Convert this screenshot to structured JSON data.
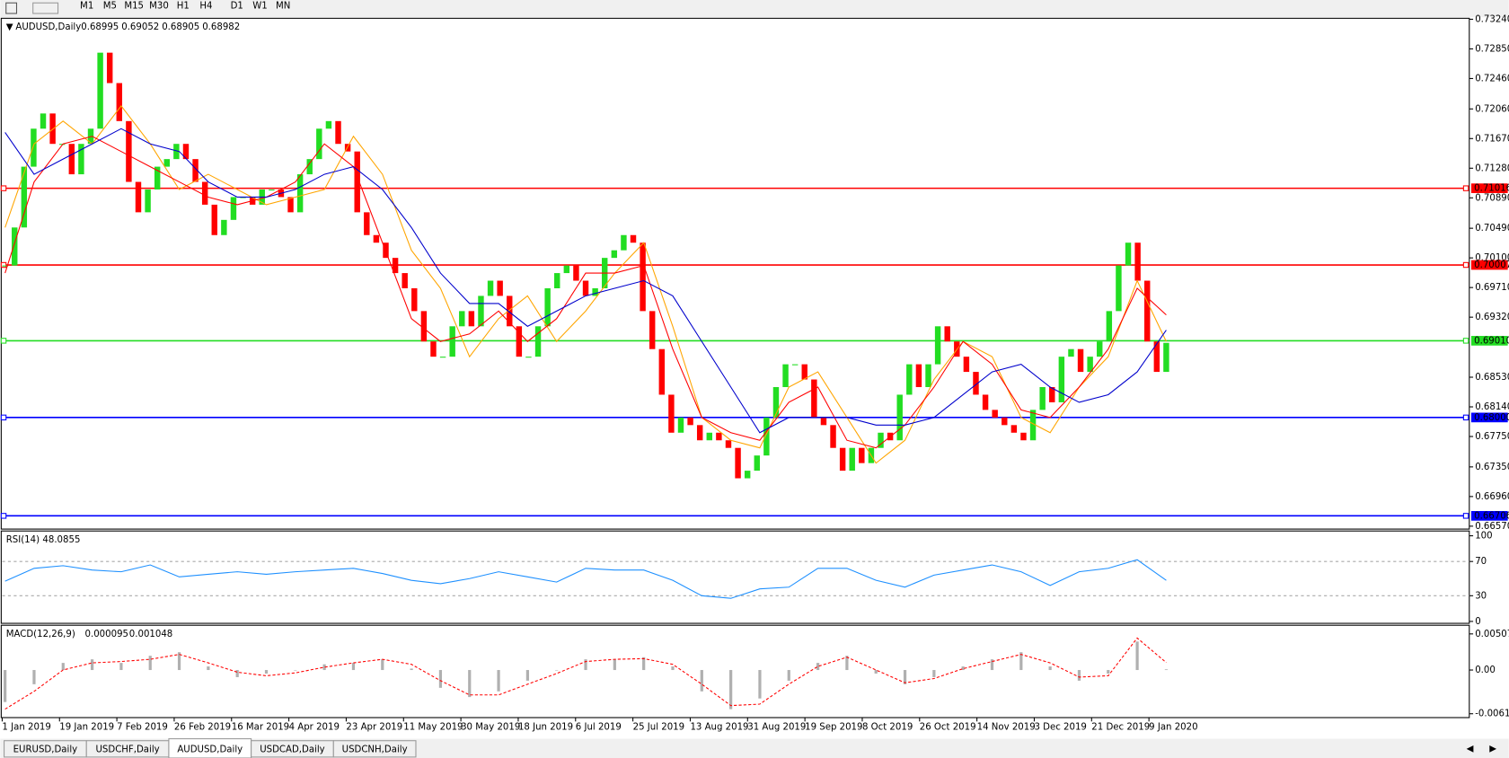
{
  "toolbar": {
    "timeframes": [
      "M1",
      "M5",
      "M15",
      "M30",
      "H1",
      "H4",
      "D1",
      "W1",
      "MN"
    ]
  },
  "tabs": {
    "items": [
      "EURUSD,Daily",
      "USDCHF,Daily",
      "AUDUSD,Daily",
      "USDCAD,Daily",
      "USDCNH,Daily"
    ],
    "active": 2
  },
  "chart_data": {
    "type": "candlestick",
    "title": "AUDUSD,Daily",
    "quote": [
      0.68995,
      0.69052,
      0.68905,
      0.68982
    ],
    "up_color": "#22dd22",
    "down_color": "#ff0000",
    "close": [
      0.7,
      0.705,
      0.713,
      0.718,
      0.72,
      0.716,
      0.716,
      0.712,
      0.716,
      0.718,
      0.728,
      0.724,
      0.719,
      0.711,
      0.707,
      0.71,
      0.713,
      0.714,
      0.716,
      0.714,
      0.711,
      0.708,
      0.704,
      0.706,
      0.709,
      0.709,
      0.708,
      0.71,
      0.71,
      0.709,
      0.707,
      0.712,
      0.714,
      0.718,
      0.719,
      0.716,
      0.715,
      0.707,
      0.704,
      0.703,
      0.701,
      0.699,
      0.697,
      0.694,
      0.69,
      0.688,
      0.688,
      0.692,
      0.694,
      0.692,
      0.696,
      0.698,
      0.696,
      0.692,
      0.688,
      0.688,
      0.692,
      0.697,
      0.699,
      0.7,
      0.698,
      0.696,
      0.697,
      0.701,
      0.702,
      0.704,
      0.703,
      0.694,
      0.689,
      0.683,
      0.678,
      0.68,
      0.679,
      0.677,
      0.678,
      0.677,
      0.676,
      0.672,
      0.673,
      0.675,
      0.68,
      0.684,
      0.687,
      0.687,
      0.685,
      0.68,
      0.679,
      0.676,
      0.673,
      0.676,
      0.674,
      0.676,
      0.678,
      0.677,
      0.683,
      0.687,
      0.684,
      0.687,
      0.692,
      0.69,
      0.688,
      0.686,
      0.683,
      0.681,
      0.68,
      0.679,
      0.678,
      0.677,
      0.681,
      0.684,
      0.682,
      0.688,
      0.689,
      0.686,
      0.688,
      0.69,
      0.694,
      0.7,
      0.703,
      0.698,
      0.69,
      0.686,
      0.68982
    ],
    "moving_averages": [
      {
        "color": "#ffa500",
        "values": [
          0.705,
          0.716,
          0.719,
          0.716,
          0.721,
          0.716,
          0.71,
          0.712,
          0.71,
          0.708,
          0.709,
          0.71,
          0.717,
          0.712,
          0.702,
          0.697,
          0.688,
          0.693,
          0.696,
          0.69,
          0.694,
          0.699,
          0.703,
          0.692,
          0.68,
          0.677,
          0.676,
          0.684,
          0.686,
          0.68,
          0.674,
          0.677,
          0.685,
          0.69,
          0.688,
          0.68,
          0.678,
          0.684,
          0.688,
          0.698,
          0.69
        ]
      },
      {
        "color": "#ff0000",
        "values": [
          0.699,
          0.711,
          0.716,
          0.717,
          0.715,
          0.713,
          0.711,
          0.709,
          0.708,
          0.709,
          0.711,
          0.716,
          0.713,
          0.703,
          0.693,
          0.69,
          0.691,
          0.694,
          0.69,
          0.693,
          0.699,
          0.699,
          0.7,
          0.689,
          0.68,
          0.678,
          0.677,
          0.682,
          0.684,
          0.677,
          0.676,
          0.679,
          0.684,
          0.69,
          0.687,
          0.681,
          0.68,
          0.684,
          0.689,
          0.697,
          0.6935
        ]
      },
      {
        "color": "#0000cc",
        "values": [
          0.7175,
          0.712,
          0.714,
          0.716,
          0.718,
          0.716,
          0.715,
          0.711,
          0.709,
          0.709,
          0.71,
          0.712,
          0.713,
          0.71,
          0.705,
          0.699,
          0.695,
          0.695,
          0.692,
          0.694,
          0.696,
          0.697,
          0.698,
          0.696,
          0.69,
          0.684,
          0.678,
          0.68,
          0.68,
          0.68,
          0.679,
          0.679,
          0.68,
          0.683,
          0.686,
          0.687,
          0.684,
          0.682,
          0.683,
          0.686,
          0.6915
        ]
      }
    ],
    "levels": [
      {
        "value": 0.71016,
        "label": "0.71016",
        "color": "#ff0000"
      },
      {
        "value": 0.70007,
        "label": "0.70007",
        "color": "#ff0000"
      },
      {
        "value": 0.6901,
        "label": "0.69010",
        "color": "#22dd22"
      },
      {
        "value": 0.68,
        "label": "0.68000",
        "color": "#0000ff"
      },
      {
        "value": 0.66706,
        "label": "0.66706",
        "color": "#0000ff"
      }
    ],
    "ylim": [
      0.6657,
      0.7324
    ],
    "yticks": [
      {
        "value": 0.7324,
        "label": "0.73240"
      },
      {
        "value": 0.7285,
        "label": "0.72850"
      },
      {
        "value": 0.7246,
        "label": "0.72460"
      },
      {
        "value": 0.7206,
        "label": "0.72060"
      },
      {
        "value": 0.7167,
        "label": "0.71670"
      },
      {
        "value": 0.7128,
        "label": "0.71280"
      },
      {
        "value": 0.7089,
        "label": "0.70890"
      },
      {
        "value": 0.7049,
        "label": "0.70490"
      },
      {
        "value": 0.701,
        "label": "0.70100"
      },
      {
        "value": 0.6971,
        "label": "0.69710"
      },
      {
        "value": 0.6932,
        "label": "0.69320"
      },
      {
        "value": 0.6853,
        "label": "0.68530"
      },
      {
        "value": 0.6814,
        "label": "0.68140"
      },
      {
        "value": 0.6775,
        "label": "0.67750"
      },
      {
        "value": 0.6735,
        "label": "0.67350"
      },
      {
        "value": 0.6696,
        "label": "0.66960"
      },
      {
        "value": 0.6657,
        "label": "0.66570"
      }
    ],
    "xtick_labels": [
      "1 Jan 2019",
      "19 Jan 2019",
      "7 Feb 2019",
      "26 Feb 2019",
      "16 Mar 2019",
      "4 Apr 2019",
      "23 Apr 2019",
      "11 May 2019",
      "30 May 2019",
      "18 Jun 2019",
      "6 Jul 2019",
      "25 Jul 2019",
      "13 Aug 2019",
      "31 Aug 2019",
      "19 Sep 2019",
      "8 Oct 2019",
      "26 Oct 2019",
      "14 Nov 2019",
      "3 Dec 2019",
      "21 Dec 2019",
      "9 Jan 2020"
    ],
    "rsi": {
      "title": "RSI(14)",
      "current": 48.0855,
      "color": "#1e90ff",
      "ylim": [
        0,
        100
      ],
      "yticks": [
        100,
        70,
        30,
        0
      ],
      "values": [
        47,
        62,
        65,
        60,
        58,
        66,
        52,
        55,
        58,
        55,
        58,
        60,
        62,
        56,
        48,
        44,
        50,
        58,
        52,
        46,
        62,
        60,
        60,
        48,
        30,
        27,
        38,
        40,
        62,
        62,
        48,
        40,
        54,
        60,
        66,
        58,
        42,
        58,
        62,
        72,
        48
      ]
    },
    "macd": {
      "title": "MACD(12,26,9)",
      "current": [
        9.5e-05,
        0.001048
      ],
      "hist_color": "#b0b0b0",
      "signal_color": "#ff0000",
      "ylim": [
        -0.006148,
        0.005076
      ],
      "yticks": [
        0.005076,
        {
          "value": 0,
          "label": "0.00"
        },
        -0.006148
      ],
      "histogram": [
        -0.0045,
        -0.002,
        0.001,
        0.0015,
        0.001,
        0.002,
        0.0025,
        0.0005,
        -0.001,
        -0.0005,
        0,
        0.0008,
        0.001,
        0.0015,
        0.0002,
        -0.0025,
        -0.0038,
        -0.003,
        -0.0015,
        0,
        0.0015,
        0.0015,
        0.0018,
        0.0005,
        -0.003,
        -0.0055,
        -0.004,
        -0.0015,
        0.001,
        0.002,
        -0.0005,
        -0.002,
        -0.001,
        0.0005,
        0.0015,
        0.0025,
        0.0005,
        -0.0015,
        -0.0005,
        0.004,
        9.5e-05
      ],
      "signal": [
        -0.0055,
        -0.003,
        0,
        0.001,
        0.0012,
        0.0015,
        0.0022,
        0.001,
        -0.0003,
        -0.0008,
        -0.0004,
        0.0004,
        0.001,
        0.0015,
        0.0008,
        -0.0015,
        -0.0035,
        -0.0035,
        -0.002,
        -0.0005,
        0.0012,
        0.0015,
        0.0016,
        0.0008,
        -0.002,
        -0.005,
        -0.0048,
        -0.002,
        0.0005,
        0.0018,
        0,
        -0.0018,
        -0.0012,
        0.0002,
        0.0012,
        0.0022,
        0.001,
        -0.001,
        -0.0008,
        0.0045,
        0.001048
      ]
    }
  }
}
